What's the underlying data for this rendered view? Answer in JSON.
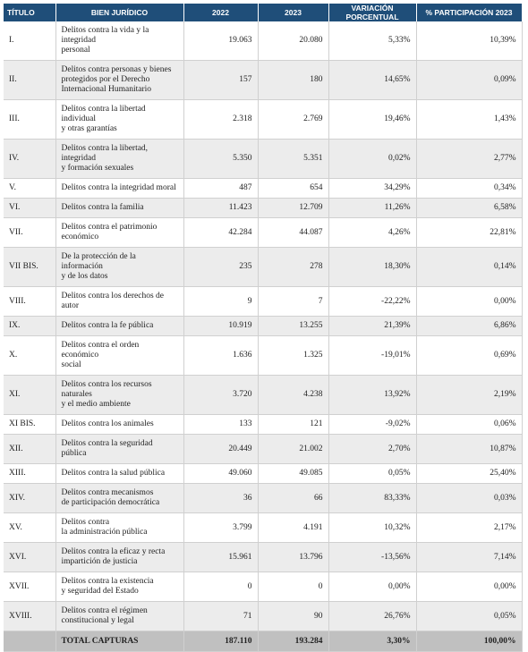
{
  "table": {
    "header": [
      "TÍTULO",
      "BIEN JURÍDICO",
      "2022",
      "2023",
      "VARIACIÓN PORCENTUAL",
      "% PARTICIPACIÓN 2023"
    ],
    "rows": [
      [
        "I.",
        "Delitos contra la vida y la integridad\npersonal",
        "19.063",
        "20.080",
        "5,33%",
        "10,39%"
      ],
      [
        "II.",
        "Delitos contra personas y bienes\nprotegidos por el Derecho\nInternacional Humanitario",
        "157",
        "180",
        "14,65%",
        "0,09%"
      ],
      [
        "III.",
        "Delitos contra la libertad individual\ny otras garantías",
        "2.318",
        "2.769",
        "19,46%",
        "1,43%"
      ],
      [
        "IV.",
        "Delitos contra la libertad, integridad\ny formación sexuales",
        "5.350",
        "5.351",
        "0,02%",
        "2,77%"
      ],
      [
        "V.",
        "Delitos contra la integridad moral",
        "487",
        "654",
        "34,29%",
        "0,34%"
      ],
      [
        "VI.",
        "Delitos contra la familia",
        "11.423",
        "12.709",
        "11,26%",
        "6,58%"
      ],
      [
        "VII.",
        "Delitos contra el patrimonio\neconómico",
        "42.284",
        "44.087",
        "4,26%",
        "22,81%"
      ],
      [
        "VII BIS.",
        "De la protección de la información\ny de los datos",
        "235",
        "278",
        "18,30%",
        "0,14%"
      ],
      [
        "VIII.",
        "Delitos contra los derechos de autor",
        "9",
        "7",
        "-22,22%",
        "0,00%"
      ],
      [
        "IX.",
        "Delitos contra la fe pública",
        "10.919",
        "13.255",
        "21,39%",
        "6,86%"
      ],
      [
        "X.",
        "Delitos contra el orden económico\nsocial",
        "1.636",
        "1.325",
        "-19,01%",
        "0,69%"
      ],
      [
        "XI.",
        "Delitos contra los recursos naturales\ny el medio ambiente",
        "3.720",
        "4.238",
        "13,92%",
        "2,19%"
      ],
      [
        "XI BIS.",
        "Delitos contra los animales",
        "133",
        "121",
        "-9,02%",
        "0,06%"
      ],
      [
        "XII.",
        "Delitos contra la seguridad pública",
        "20.449",
        "21.002",
        "2,70%",
        "10,87%"
      ],
      [
        "XIII.",
        "Delitos contra la salud pública",
        "49.060",
        "49.085",
        "0,05%",
        "25,40%"
      ],
      [
        "XIV.",
        "Delitos contra mecanismos\nde participación democrática",
        "36",
        "66",
        "83,33%",
        "0,03%"
      ],
      [
        "XV.",
        "Delitos contra\nla administración pública",
        "3.799",
        "4.191",
        "10,32%",
        "2,17%"
      ],
      [
        "XVI.",
        "Delitos contra la eficaz y recta\nimpartición de justicia",
        "15.961",
        "13.796",
        "-13,56%",
        "7,14%"
      ],
      [
        "XVII.",
        "Delitos contra la existencia\ny seguridad del Estado",
        "0",
        "0",
        "0,00%",
        "0,00%"
      ],
      [
        "XVIII.",
        "Delitos contra el régimen\nconstitucional y legal",
        "71",
        "90",
        "26,76%",
        "0,05%"
      ]
    ],
    "total": [
      "TOTAL CAPTURAS",
      "187.110",
      "193.284",
      "3,30%",
      "100,00%"
    ]
  }
}
